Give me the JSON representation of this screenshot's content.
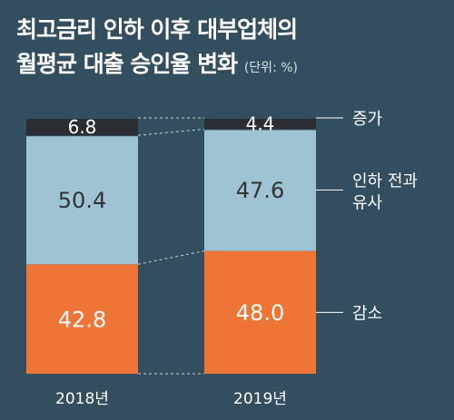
{
  "title_line1": "최고금리 인하 이후 대부업체의",
  "title_line2": "월평균 대출 승인율 변화",
  "unit": "(단위: %)",
  "colors": {
    "background": "#334e5f",
    "increase": "#2a2e33",
    "similar": "#9ec3d2",
    "decrease": "#ee7536"
  },
  "chart_data": {
    "type": "bar",
    "stacked": true,
    "categories": [
      "2018년",
      "2019년"
    ],
    "series": [
      {
        "name": "감소",
        "values": [
          42.8,
          48.0
        ],
        "labels": [
          "42.8",
          "48.0"
        ],
        "color": "#ee7536"
      },
      {
        "name": "인하 전과 유사",
        "values": [
          50.4,
          47.6
        ],
        "labels": [
          "50.4",
          "47.6"
        ],
        "color": "#9ec3d2"
      },
      {
        "name": "증가",
        "values": [
          6.8,
          4.4
        ],
        "labels": [
          "6.8",
          "4.4"
        ],
        "color": "#2a2e33"
      }
    ],
    "legend_placement": "right",
    "grid": false
  }
}
